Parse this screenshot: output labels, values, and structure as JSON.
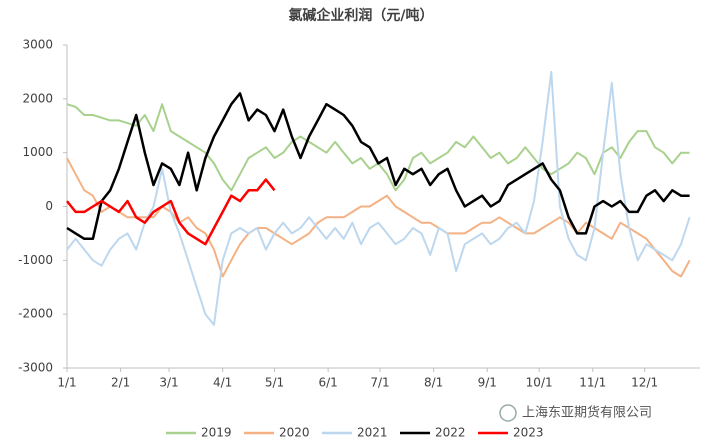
{
  "chart_data": {
    "type": "line",
    "title": "氯碱企业利润（元/吨）",
    "x": [
      0,
      5,
      10,
      15,
      20,
      25,
      30,
      35,
      40,
      45,
      50,
      55,
      60,
      65,
      70,
      75,
      80,
      85,
      90,
      95,
      100,
      105,
      110,
      115,
      120,
      125,
      130,
      135,
      140,
      145,
      150,
      155,
      160,
      165,
      170,
      175,
      180,
      185,
      190,
      195,
      200,
      205,
      210,
      215,
      220,
      225,
      230,
      235,
      240,
      245,
      250,
      255,
      260,
      265,
      270,
      275,
      280,
      285,
      290,
      295,
      300,
      305,
      310,
      315,
      320,
      325,
      330,
      335,
      340,
      345,
      350,
      355,
      360
    ],
    "xlim": [
      0,
      366
    ],
    "xticks": [
      {
        "value": 0,
        "label": "1/1"
      },
      {
        "value": 31,
        "label": "2/1"
      },
      {
        "value": 59,
        "label": "3/1"
      },
      {
        "value": 90,
        "label": "4/1"
      },
      {
        "value": 120,
        "label": "5/1"
      },
      {
        "value": 151,
        "label": "6/1"
      },
      {
        "value": 181,
        "label": "7/1"
      },
      {
        "value": 212,
        "label": "8/1"
      },
      {
        "value": 243,
        "label": "9/1"
      },
      {
        "value": 273,
        "label": "10/1"
      },
      {
        "value": 304,
        "label": "11/1"
      },
      {
        "value": 334,
        "label": "12/1"
      }
    ],
    "ylim": [
      -3000,
      3000
    ],
    "yticks": [
      -3000,
      -2000,
      -1000,
      0,
      1000,
      2000,
      3000
    ],
    "grid": false,
    "legend": "bottom",
    "series": [
      {
        "name": "2019",
        "color": "#a9d18e",
        "values": [
          1900,
          1850,
          1700,
          1700,
          1650,
          1600,
          1600,
          1550,
          1500,
          1700,
          1400,
          1900,
          1400,
          1300,
          1200,
          1100,
          1000,
          800,
          500,
          300,
          600,
          900,
          1000,
          1100,
          900,
          1000,
          1200,
          1300,
          1200,
          1100,
          1000,
          1200,
          1000,
          800,
          900,
          700,
          800,
          600,
          300,
          500,
          900,
          1000,
          800,
          900,
          1000,
          1200,
          1100,
          1300,
          1100,
          900,
          1000,
          800,
          900,
          1100,
          900,
          700,
          600,
          700,
          800,
          1000,
          900,
          600,
          1000,
          1100,
          900,
          1200,
          1400,
          1400,
          1100,
          1000,
          800,
          1000,
          1000
        ]
      },
      {
        "name": "2020",
        "color": "#f4b183",
        "values": [
          900,
          600,
          300,
          200,
          -100,
          0,
          -100,
          -200,
          -200,
          -200,
          -200,
          0,
          -100,
          -300,
          -200,
          -400,
          -500,
          -800,
          -1300,
          -1000,
          -700,
          -500,
          -400,
          -400,
          -500,
          -600,
          -700,
          -600,
          -500,
          -300,
          -200,
          -200,
          -200,
          -100,
          0,
          0,
          100,
          200,
          0,
          -100,
          -200,
          -300,
          -300,
          -400,
          -500,
          -500,
          -500,
          -400,
          -300,
          -300,
          -200,
          -300,
          -400,
          -500,
          -500,
          -400,
          -300,
          -200,
          -300,
          -500,
          -300,
          -400,
          -500,
          -600,
          -300,
          -400,
          -500,
          -600,
          -800,
          -1000,
          -1200,
          -1300,
          -1000
        ]
      },
      {
        "name": "2021",
        "color": "#bdd7ee",
        "values": [
          -800,
          -600,
          -800,
          -1000,
          -1100,
          -800,
          -600,
          -500,
          -800,
          -300,
          0,
          700,
          -100,
          -500,
          -1000,
          -1500,
          -2000,
          -2200,
          -1000,
          -500,
          -400,
          -500,
          -400,
          -800,
          -500,
          -300,
          -500,
          -400,
          -200,
          -400,
          -600,
          -400,
          -600,
          -300,
          -700,
          -400,
          -300,
          -500,
          -700,
          -600,
          -400,
          -500,
          -900,
          -400,
          -500,
          -1200,
          -700,
          -600,
          -500,
          -700,
          -600,
          -400,
          -300,
          -500,
          100,
          1200,
          2500,
          0,
          -600,
          -900,
          -1000,
          -400,
          1000,
          2300,
          600,
          -400,
          -1000,
          -700,
          -800,
          -900,
          -1000,
          -700,
          -200
        ]
      },
      {
        "name": "2022",
        "color": "#000000",
        "values": [
          -400,
          -500,
          -600,
          -600,
          100,
          300,
          700,
          1200,
          1700,
          1000,
          400,
          800,
          700,
          400,
          1000,
          300,
          900,
          1300,
          1600,
          1900,
          2100,
          1600,
          1800,
          1700,
          1400,
          1800,
          1300,
          900,
          1300,
          1600,
          1900,
          1800,
          1700,
          1500,
          1200,
          1100,
          800,
          900,
          400,
          700,
          600,
          700,
          400,
          600,
          700,
          300,
          0,
          100,
          200,
          0,
          100,
          400,
          500,
          600,
          700,
          800,
          500,
          300,
          -200,
          -500,
          -500,
          0,
          100,
          0,
          100,
          -100,
          -100,
          200,
          300,
          100,
          300,
          200,
          200
        ]
      },
      {
        "name": "2023",
        "color": "#ff0000",
        "values": [
          100,
          -100,
          -100,
          0,
          100,
          0,
          -100,
          100,
          -200,
          -300,
          -100,
          0,
          100,
          -300,
          -500,
          -600,
          -700,
          -400,
          -100,
          200,
          100,
          300,
          300,
          500,
          300,
          null,
          null,
          null,
          null,
          null,
          null,
          null,
          null,
          null,
          null,
          null,
          null,
          null,
          null,
          null,
          null,
          null,
          null,
          null,
          null,
          null,
          null,
          null,
          null,
          null,
          null,
          null,
          null,
          null,
          null,
          null,
          null,
          null,
          null,
          null,
          null,
          null,
          null,
          null,
          null,
          null,
          null,
          null,
          null,
          null,
          null,
          null,
          null
        ]
      }
    ]
  },
  "watermark": "上海东亚期货有限公司"
}
